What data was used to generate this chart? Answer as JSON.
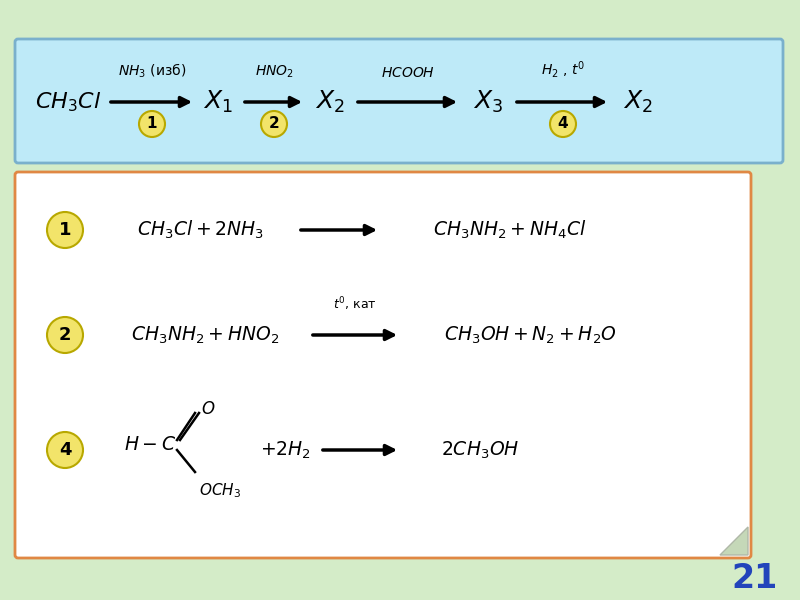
{
  "bg_color": "#d4ecc8",
  "top_box_color": "#beeaf8",
  "top_box_edge_color": "#7ab0cc",
  "bottom_box_color": "#ffffff",
  "bottom_box_edge_color": "#e08844",
  "circle_color": "#f2e46a",
  "circle_edge_color": "#b8a800",
  "page_number": "21",
  "page_num_color": "#2244bb"
}
